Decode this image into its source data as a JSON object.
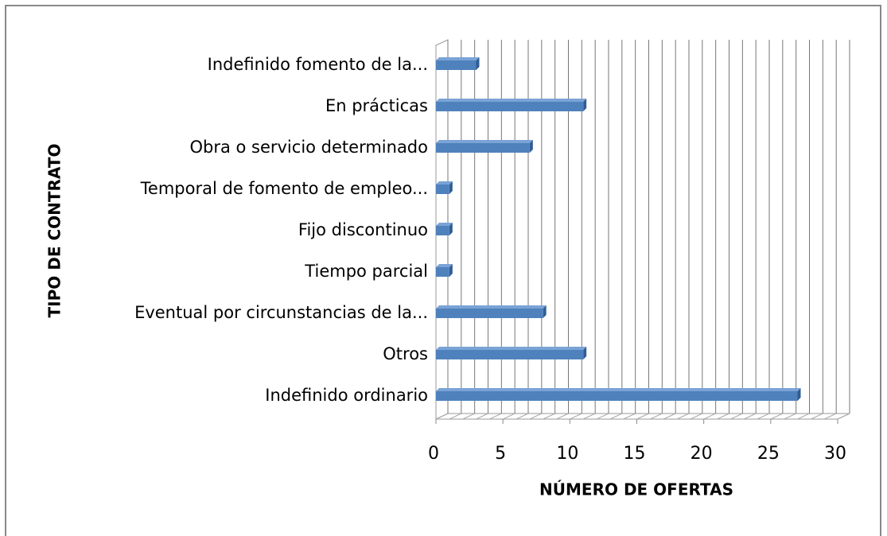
{
  "chart_data": {
    "type": "bar3d_horizontal",
    "categories": [
      "Indefinido ordinario",
      "Otros",
      "Eventual por circunstancias de la...",
      "Tiempo parcial",
      "Fijo discontinuo",
      "Temporal de fomento de empleo...",
      "Obra o servicio determinado",
      "En prácticas",
      "Indefinido fomento de la..."
    ],
    "values": [
      27,
      11,
      8,
      1,
      1,
      1,
      7,
      11,
      3
    ],
    "color": "#4f81bd",
    "xlim": [
      0,
      30
    ],
    "xticks": [
      0,
      5,
      10,
      15,
      20,
      25,
      30
    ],
    "xminorticks": [
      0,
      1,
      2,
      3,
      4,
      5,
      6,
      7,
      8,
      9,
      10,
      11,
      12,
      13,
      14,
      15,
      16,
      17,
      18,
      19,
      20,
      21,
      22,
      23,
      24,
      25,
      26,
      27,
      28,
      29,
      30
    ],
    "grid": true,
    "xlabel": "NÚMERO DE OFERTAS",
    "ylabel": "TIPO DE CONTRATO"
  }
}
